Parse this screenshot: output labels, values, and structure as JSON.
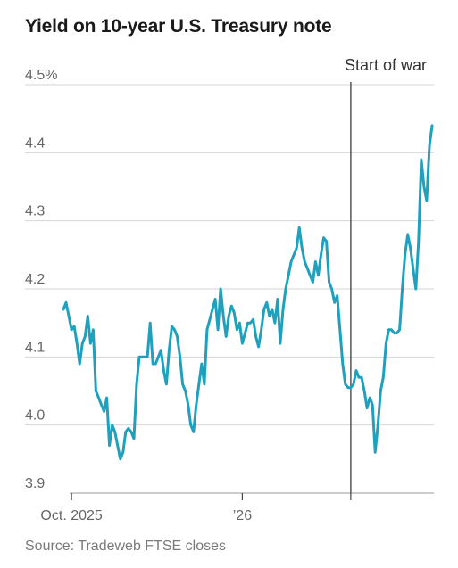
{
  "title": "Yield on 10-year U.S. Treasury note",
  "source": "Source: Tradeweb FTSE closes",
  "colors": {
    "line": "#1fa1bd",
    "grid": "#d6d6d6",
    "annotation": "#555555",
    "axis": "#999999"
  },
  "chart_data": {
    "type": "line",
    "title": "Yield on 10-year U.S. Treasury note",
    "xlabel": "",
    "ylabel": "",
    "ylim": [
      3.9,
      4.5
    ],
    "grid": true,
    "y_ticks": [
      {
        "value": 4.5,
        "label": "4.5%"
      },
      {
        "value": 4.4,
        "label": "4.4"
      },
      {
        "value": 4.3,
        "label": "4.3"
      },
      {
        "value": 4.2,
        "label": "4.2"
      },
      {
        "value": 4.1,
        "label": "4.1"
      },
      {
        "value": 4.0,
        "label": "4.0"
      },
      {
        "value": 3.9,
        "label": "3.9"
      }
    ],
    "x_ticks": [
      {
        "index": 3,
        "label": "Oct. 2025"
      },
      {
        "index": 66,
        "label": "’26"
      },
      {
        "index": 106,
        "label": ""
      }
    ],
    "annotation": {
      "label": "Start of war",
      "index": 106
    },
    "values": [
      4.17,
      4.18,
      4.16,
      4.14,
      4.145,
      4.12,
      4.09,
      4.12,
      4.13,
      4.16,
      4.12,
      4.14,
      4.05,
      4.04,
      4.03,
      4.02,
      4.04,
      3.97,
      4.0,
      3.99,
      3.97,
      3.95,
      3.96,
      3.99,
      3.995,
      3.99,
      3.98,
      4.06,
      4.1,
      4.1,
      4.1,
      4.1,
      4.15,
      4.09,
      4.09,
      4.1,
      4.11,
      4.08,
      4.06,
      4.11,
      4.145,
      4.14,
      4.13,
      4.1,
      4.06,
      4.05,
      4.03,
      4.0,
      3.99,
      4.03,
      4.06,
      4.09,
      4.06,
      4.14,
      4.155,
      4.17,
      4.185,
      4.14,
      4.2,
      4.16,
      4.13,
      4.16,
      4.175,
      4.165,
      4.14,
      4.15,
      4.12,
      4.135,
      4.15,
      4.15,
      4.155,
      4.13,
      4.115,
      4.14,
      4.17,
      4.18,
      4.16,
      4.17,
      4.15,
      4.185,
      4.12,
      4.17,
      4.2,
      4.22,
      4.24,
      4.25,
      4.26,
      4.29,
      4.26,
      4.24,
      4.23,
      4.22,
      4.21,
      4.24,
      4.22,
      4.25,
      4.275,
      4.27,
      4.21,
      4.2,
      4.18,
      4.19,
      4.14,
      4.09,
      4.06,
      4.055,
      4.055,
      4.06,
      4.08,
      4.07,
      4.07,
      4.05,
      4.025,
      4.04,
      4.03,
      3.96,
      4.0,
      4.05,
      4.07,
      4.12,
      4.14,
      4.14,
      4.135,
      4.135,
      4.14,
      4.2,
      4.25,
      4.28,
      4.26,
      4.23,
      4.2,
      4.27,
      4.39,
      4.35,
      4.33,
      4.41,
      4.44
    ]
  }
}
